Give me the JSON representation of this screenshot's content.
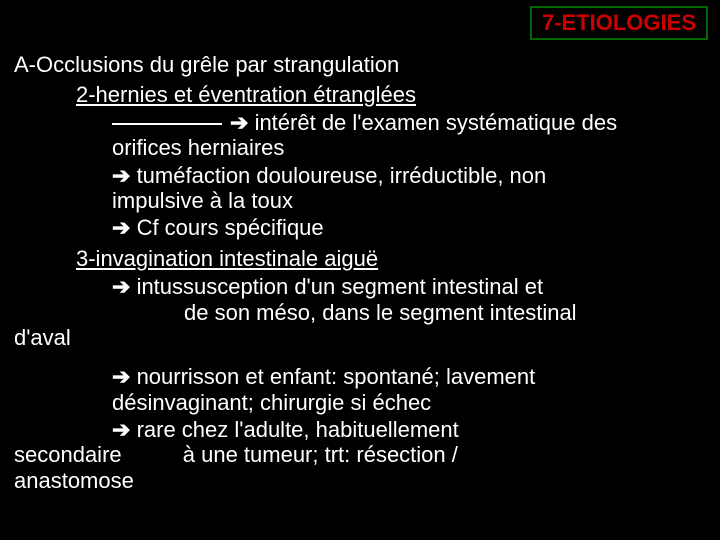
{
  "header": {
    "title": "7-ETIOLOGIES"
  },
  "section": {
    "a_title": "A-Occlusions du grêle par strangulation",
    "sub2": {
      "title": "2-hernies et éventration étranglées",
      "b1a": "intérêt de l'examen systématique des",
      "b1b": "orifices herniaires",
      "b2a": "tuméfaction douloureuse, irréductible, non",
      "b2b": "impulsive à la toux",
      "b3": "Cf cours spécifique"
    },
    "sub3": {
      "title": "3-invagination intestinale aiguë",
      "b1a": "intussusception d'un segment intestinal et",
      "b1b": "de son méso, dans le segment intestinal",
      "b1c": "d'aval",
      "b2a": "nourrisson et enfant: spontané; lavement",
      "b2b": "désinvaginant; chirurgie si échec",
      "b3a": "rare chez l'adulte, habituellement",
      "b3b": "secondaire          à une tumeur; trt: résection /",
      "b3c": "anastomose"
    }
  },
  "glyph": {
    "arrow": "➔"
  }
}
